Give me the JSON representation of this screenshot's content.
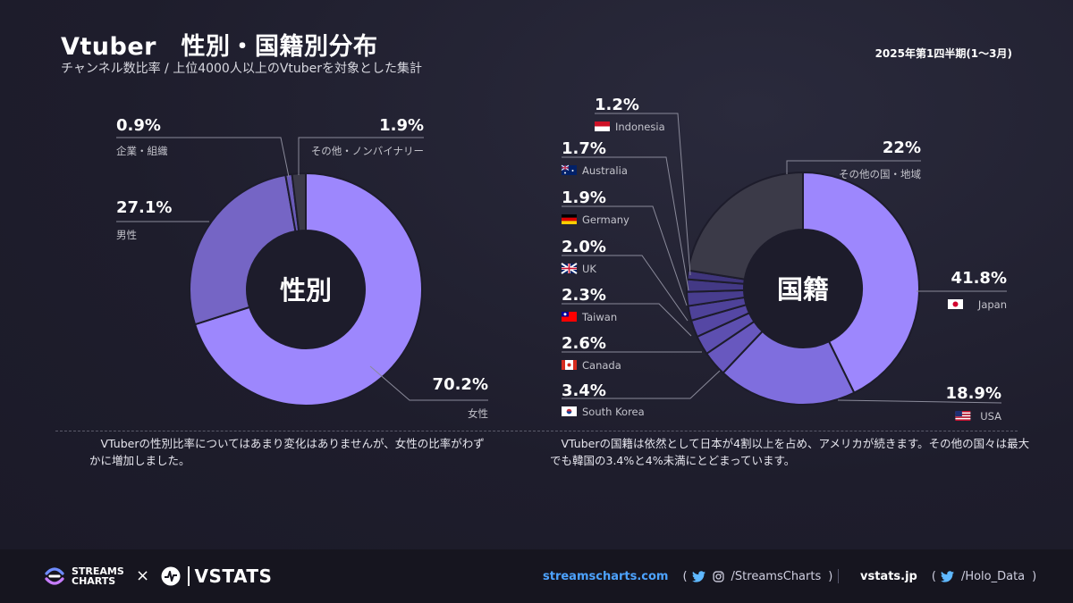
{
  "header": {
    "title": "Vtuber　性別・国籍別分布",
    "subtitle": "チャンネル数比率 / 上位4000人以上のVtuberを対象とした集計",
    "period": "2025年第1四半期(1〜3月)"
  },
  "chart_data": [
    {
      "type": "pie",
      "center_label": "性別",
      "categories": [
        "女性",
        "男性",
        "企業・組織",
        "その他・ノンバイナリー"
      ],
      "values": [
        70.2,
        27.1,
        0.9,
        1.9
      ],
      "value_labels": [
        "70.2%",
        "27.1%",
        "0.9%",
        "1.9%"
      ],
      "colors": [
        "#9d87fd",
        "#7565c5",
        "#6a5bb8",
        "#3b3a48"
      ]
    },
    {
      "type": "pie",
      "center_label": "国籍",
      "categories": [
        "Japan",
        "USA",
        "South Korea",
        "Canada",
        "Taiwan",
        "UK",
        "Germany",
        "Australia",
        "Indonesia",
        "その他の国・地域"
      ],
      "values": [
        41.8,
        18.9,
        3.4,
        2.6,
        2.3,
        2.0,
        1.9,
        1.7,
        1.2,
        22
      ],
      "value_labels": [
        "41.8%",
        "18.9%",
        "3.4%",
        "2.6%",
        "2.3%",
        "2.0%",
        "1.9%",
        "1.7%",
        "1.2%",
        "22%"
      ],
      "colors": [
        "#9d87fd",
        "#7f6ede",
        "#6858bf",
        "#5d4fb0",
        "#5547a4",
        "#4e4299",
        "#483d8f",
        "#433985",
        "#3f357c",
        "#3b3a48"
      ]
    }
  ],
  "notes": {
    "gender": "　VTuberの性別比率についてはあまり変化はありませんが、女性の比率がわずかに増加しました。",
    "nationality": "　VTuberの国籍は依然として日本が4割以上を占め、アメリカが続きます。その他の国々は最大でも韓国の3.4%と4%未満にとどまっています。"
  },
  "footer": {
    "streams_charts_line1": "STREAMS",
    "streams_charts_line2": "CHARTS",
    "times": "×",
    "vstats": "VSTATS",
    "site1": "streamscharts.com",
    "open_paren1": "(",
    "handle1": "/StreamsCharts",
    "close_paren1": ")",
    "site2": "vstats.jp",
    "open_paren2": "(",
    "handle2": "/Holo_Data",
    "close_paren2": ")"
  }
}
